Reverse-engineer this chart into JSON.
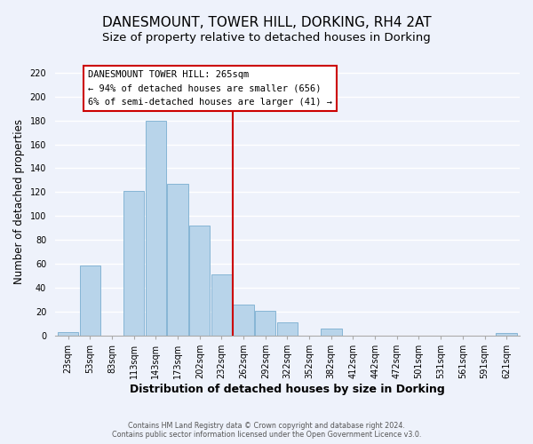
{
  "title": "DANESMOUNT, TOWER HILL, DORKING, RH4 2AT",
  "subtitle": "Size of property relative to detached houses in Dorking",
  "xlabel": "Distribution of detached houses by size in Dorking",
  "ylabel": "Number of detached properties",
  "bar_color": "#b8d4ea",
  "bar_edge_color": "#7aaed0",
  "categories": [
    "23sqm",
    "53sqm",
    "83sqm",
    "113sqm",
    "143sqm",
    "173sqm",
    "202sqm",
    "232sqm",
    "262sqm",
    "292sqm",
    "322sqm",
    "352sqm",
    "382sqm",
    "412sqm",
    "442sqm",
    "472sqm",
    "501sqm",
    "531sqm",
    "561sqm",
    "591sqm",
    "621sqm"
  ],
  "values": [
    3,
    59,
    0,
    121,
    180,
    127,
    92,
    51,
    26,
    21,
    11,
    0,
    6,
    0,
    0,
    0,
    0,
    0,
    0,
    0,
    2
  ],
  "vline_x": 7.5,
  "vline_color": "#cc0000",
  "vline_label_title": "DANESMOUNT TOWER HILL: 265sqm",
  "vline_label_line1": "← 94% of detached houses are smaller (656)",
  "vline_label_line2": "6% of semi-detached houses are larger (41) →",
  "ylim": [
    0,
    225
  ],
  "yticks": [
    0,
    20,
    40,
    60,
    80,
    100,
    120,
    140,
    160,
    180,
    200,
    220
  ],
  "footnote1": "Contains HM Land Registry data © Crown copyright and database right 2024.",
  "footnote2": "Contains public sector information licensed under the Open Government Licence v3.0.",
  "background_color": "#eef2fb",
  "plot_bg_color": "#eef2fb",
  "grid_color": "#ffffff",
  "title_fontsize": 11,
  "subtitle_fontsize": 9.5,
  "tick_fontsize": 7,
  "ylabel_fontsize": 8.5,
  "xlabel_fontsize": 9
}
